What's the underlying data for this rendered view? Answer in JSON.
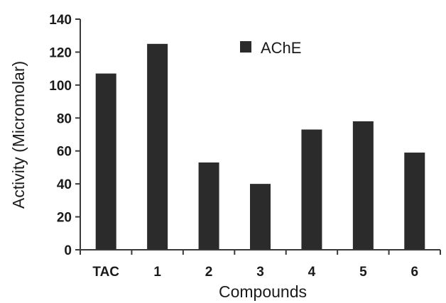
{
  "chart_data": {
    "type": "bar",
    "categories": [
      "TAC",
      "1",
      "2",
      "3",
      "4",
      "5",
      "6"
    ],
    "series": [
      {
        "name": "AChE",
        "values": [
          107,
          125,
          53,
          40,
          73,
          78,
          59
        ]
      }
    ],
    "xlabel": "Compounds",
    "ylabel": "Activity (Micromolar)",
    "ylim": [
      0,
      140
    ],
    "yticks": [
      0,
      20,
      40,
      60,
      80,
      100,
      120,
      140
    ],
    "grid": false,
    "legend": "top-right",
    "colors": {
      "bar": "#2b2b2b",
      "axis": "#3a3a3a",
      "text": "#1a1a1a"
    }
  }
}
